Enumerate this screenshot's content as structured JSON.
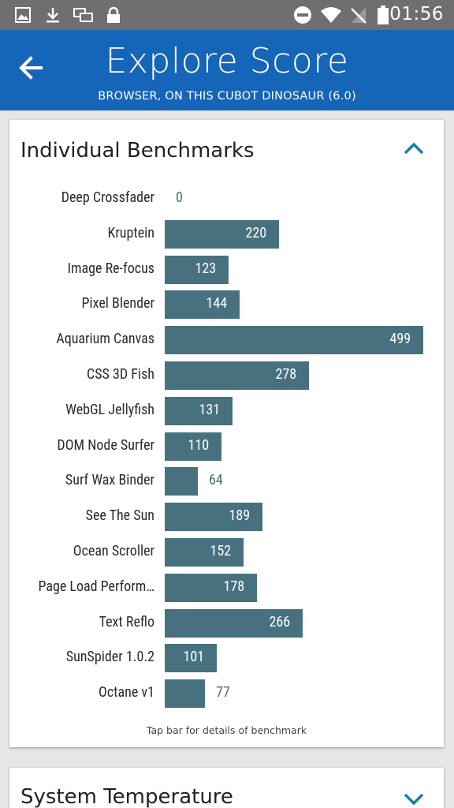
{
  "status_bar": {
    "time": "01:56",
    "left_icons": [
      "image-icon",
      "download-icon",
      "multi-window-icon",
      "lock-icon"
    ],
    "right_icons": [
      "do-not-disturb-icon",
      "wifi-icon",
      "no-signal-icon",
      "battery-icon"
    ]
  },
  "header": {
    "title": "Explore Score",
    "subtitle": "BROWSER, ON THIS CUBOT DINOSAUR (6.0)",
    "background": "#1565b8"
  },
  "benchmarks_card": {
    "title": "Individual Benchmarks",
    "footnote": "Tap bar for details of benchmark",
    "expanded": true
  },
  "temperature_card": {
    "title": "System Temperature",
    "expanded": false
  },
  "chart_data": {
    "type": "bar",
    "orientation": "horizontal",
    "bar_color": "#48717f",
    "categories": [
      "Deep Crossfader",
      "Kruptein",
      "Image Re-focus",
      "Pixel Blender",
      "Aquarium Canvas",
      "CSS 3D Fish",
      "WebGL Jellyfish",
      "DOM Node Surfer",
      "Surf Wax Binder",
      "See The Sun",
      "Ocean Scroller",
      "Page Load Perform…",
      "Text Reflo",
      "SunSpider 1.0.2",
      "Octane v1"
    ],
    "values": [
      0,
      220,
      123,
      144,
      499,
      278,
      131,
      110,
      64,
      189,
      152,
      178,
      266,
      101,
      77
    ],
    "xlim": [
      0,
      499
    ]
  }
}
